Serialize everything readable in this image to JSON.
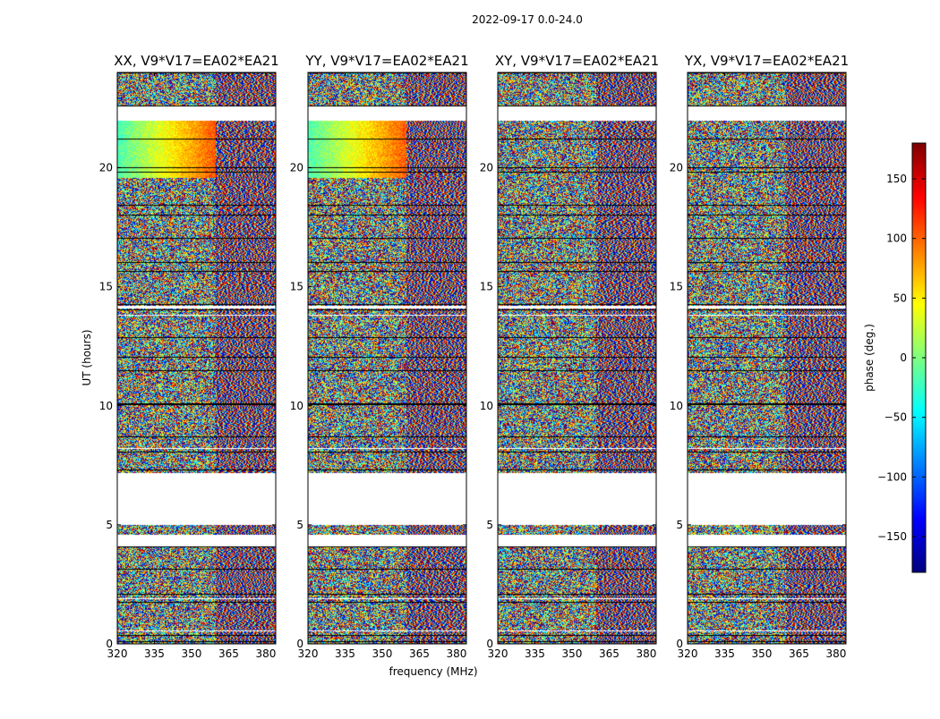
{
  "chart_data": {
    "type": "heatmap",
    "title": "2022-09-17 0.0-24.0",
    "xlabel": "frequency (MHz)",
    "ylabel": "UT (hours)",
    "xlim": [
      320,
      384
    ],
    "ylim": [
      0,
      24
    ],
    "x_ticks": [
      320,
      335,
      350,
      365,
      380
    ],
    "y_ticks": [
      0,
      5,
      10,
      15,
      20
    ],
    "panels": [
      {
        "name": "XX",
        "title": "XX, V9*V17=EA02*EA21",
        "coherent": true
      },
      {
        "name": "YY",
        "title": "YY, V9*V17=EA02*EA21",
        "coherent": true
      },
      {
        "name": "XY",
        "title": "XY, V9*V17=EA02*EA21",
        "coherent": false
      },
      {
        "name": "YX",
        "title": "YX, V9*V17=EA02*EA21",
        "coherent": false
      }
    ],
    "gaps_ut": [
      [
        22.0,
        22.6
      ],
      [
        5.0,
        7.2
      ],
      [
        4.1,
        4.6
      ],
      [
        14.1,
        14.2
      ],
      [
        13.8,
        13.85
      ],
      [
        8.2,
        8.25
      ],
      [
        1.9,
        1.95
      ],
      [
        0.55,
        0.6
      ]
    ],
    "colorbar": {
      "label": "phase (deg.)",
      "range": [
        -180,
        180
      ],
      "ticks": [
        -150,
        -100,
        -50,
        0,
        50,
        100,
        150
      ],
      "tick_labels": [
        "−150",
        "−100",
        "−50",
        "0",
        "50",
        "100",
        "150"
      ],
      "colormap": [
        "#00007f",
        "#0000ff",
        "#007fff",
        "#00ffff",
        "#7fff7f",
        "#ffff00",
        "#ff7f00",
        "#ff0000",
        "#7f0000"
      ]
    }
  }
}
